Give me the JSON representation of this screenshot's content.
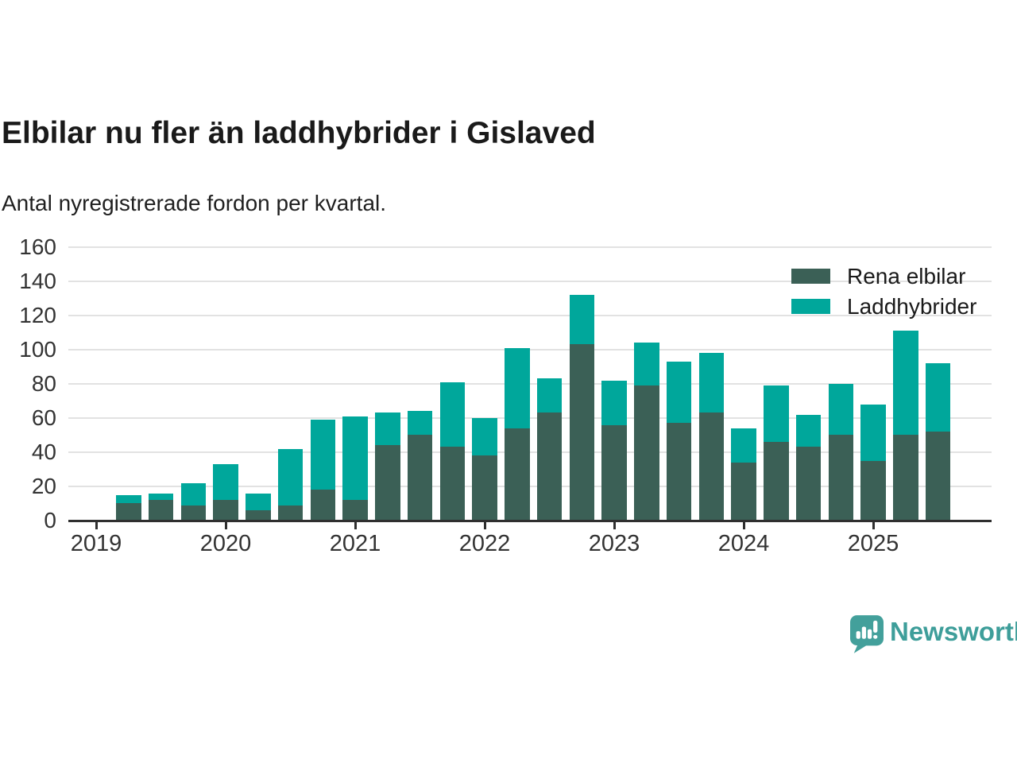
{
  "title": "Elbilar nu fler än laddhybrider i Gislaved",
  "subtitle": "Antal nyregistrerade fordon per kvartal.",
  "footer": {
    "brand": "Newsworthy",
    "logo_icon": "newsworthy-speech-bubble-bar-chart-icon"
  },
  "colors": {
    "elbilar_dark_teal": "#3B6056",
    "laddhybrider_teal": "#00A79B",
    "brand_teal": "#43A09B",
    "brand_text_teal": "#3E9E9A",
    "grid": "#E2E2E2",
    "axis": "#2F2F2F",
    "heading_text": "#1A1A1A",
    "tick_text": "#333333",
    "background": "#FFFFFF"
  },
  "chart_data": {
    "type": "bar",
    "stacked": true,
    "title": "Elbilar nu fler än laddhybrider i Gislaved",
    "subtitle": "Antal nyregistrerade fordon per kvartal.",
    "categories": [
      "2019 Q2",
      "2019 Q3",
      "2019 Q4",
      "2020 Q1",
      "2020 Q2",
      "2020 Q3",
      "2020 Q4",
      "2021 Q1",
      "2021 Q2",
      "2021 Q3",
      "2021 Q4",
      "2022 Q1",
      "2022 Q2",
      "2022 Q3",
      "2022 Q4",
      "2023 Q1",
      "2023 Q2",
      "2023 Q3",
      "2023 Q4",
      "2024 Q1",
      "2024 Q2",
      "2024 Q3",
      "2024 Q4",
      "2025 Q1",
      "2025 Q2",
      "2025 Q3"
    ],
    "series": [
      {
        "name": "Rena elbilar",
        "color": "#3B6056",
        "values": [
          10,
          12,
          9,
          12,
          6,
          9,
          18,
          12,
          44,
          50,
          43,
          38,
          54,
          63,
          103,
          56,
          79,
          57,
          63,
          34,
          46,
          43,
          50,
          35,
          50,
          52
        ]
      },
      {
        "name": "Laddhybrider",
        "color": "#00A79B",
        "values": [
          5,
          4,
          13,
          21,
          10,
          33,
          41,
          49,
          19,
          14,
          38,
          22,
          47,
          20,
          29,
          26,
          25,
          36,
          35,
          20,
          33,
          19,
          30,
          33,
          61,
          40
        ]
      }
    ],
    "x_tick_labels": [
      "2019",
      "2020",
      "2021",
      "2022",
      "2023",
      "2024",
      "2025"
    ],
    "y_ticks": [
      0,
      20,
      40,
      60,
      80,
      100,
      120,
      140,
      160
    ],
    "ylim": [
      0,
      160
    ],
    "grid": "horizontal",
    "legend_position": "top-right"
  }
}
